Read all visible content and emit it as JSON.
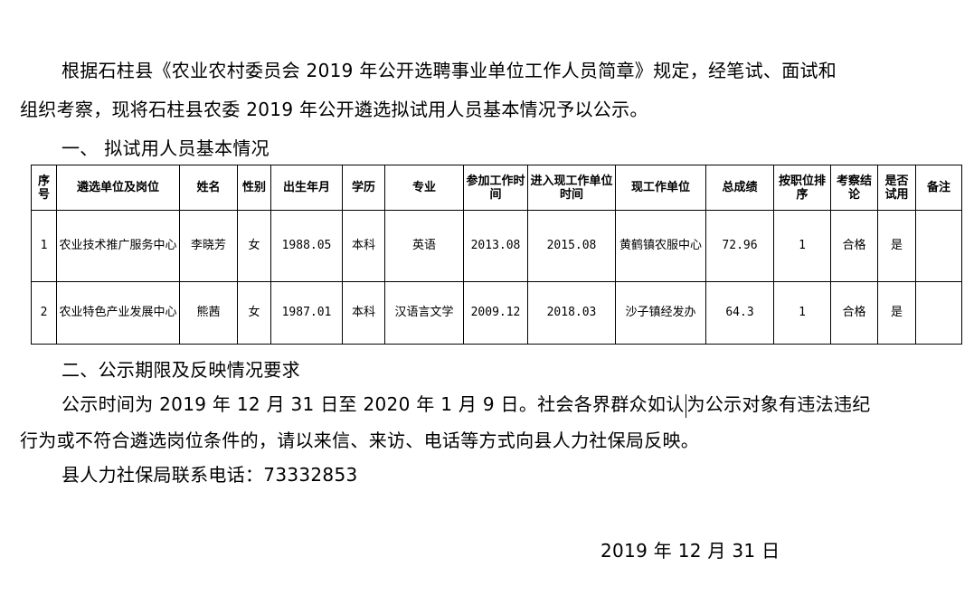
{
  "paragraphs": {
    "p1_line1": "根据石柱县《农业农村委员会 2019 年公开选聘事业单位工作人员简章》规定，经笔试、面试和",
    "p1_line2": "组织考察，现将石柱县农委 2019 年公开遴选拟试用人员基本情况予以公示。",
    "heading1": "一、 拟试用人员基本情况",
    "heading2": "二、公示期限及反映情况要求",
    "p2_line1_a": "公示时间为 2019 年 12 月 31 日至 2020 年 1 月 9 日。社会各界群众如认",
    "p2_line1_b": "为公示对象有违法违纪",
    "p2_line2": "行为或不符合遴选岗位条件的，请以来信、来访、电话等方式向县人力社保局反映。",
    "contact": "县人力社保局联系电话：73332853",
    "date": "2019 年 12 月 31 日"
  },
  "table": {
    "headers": [
      "序号",
      "遴选单位及岗位",
      "姓名",
      "性别",
      "出生年月",
      "学历",
      "专业",
      "参加工作时间",
      "进入现工作单位时间",
      "现工作单位",
      "总成绩",
      "按职位排序",
      "考察结论",
      "是否试用",
      "备注"
    ],
    "rows": [
      [
        "1",
        "农业技术推广服务中心",
        "李晓芳",
        "女",
        "1988.05",
        "本科",
        "英语",
        "2013.08",
        "2015.08",
        "黄鹤镇农服中心",
        "72.96",
        "1",
        "合格",
        "是",
        ""
      ],
      [
        "2",
        "农业特色产业发展中心",
        "熊茜",
        "女",
        "1987.01",
        "本科",
        "汉语言文学",
        "2009.12",
        "2018.03",
        "沙子镇经发办",
        "64.3",
        "1",
        "合格",
        "是",
        ""
      ]
    ]
  }
}
